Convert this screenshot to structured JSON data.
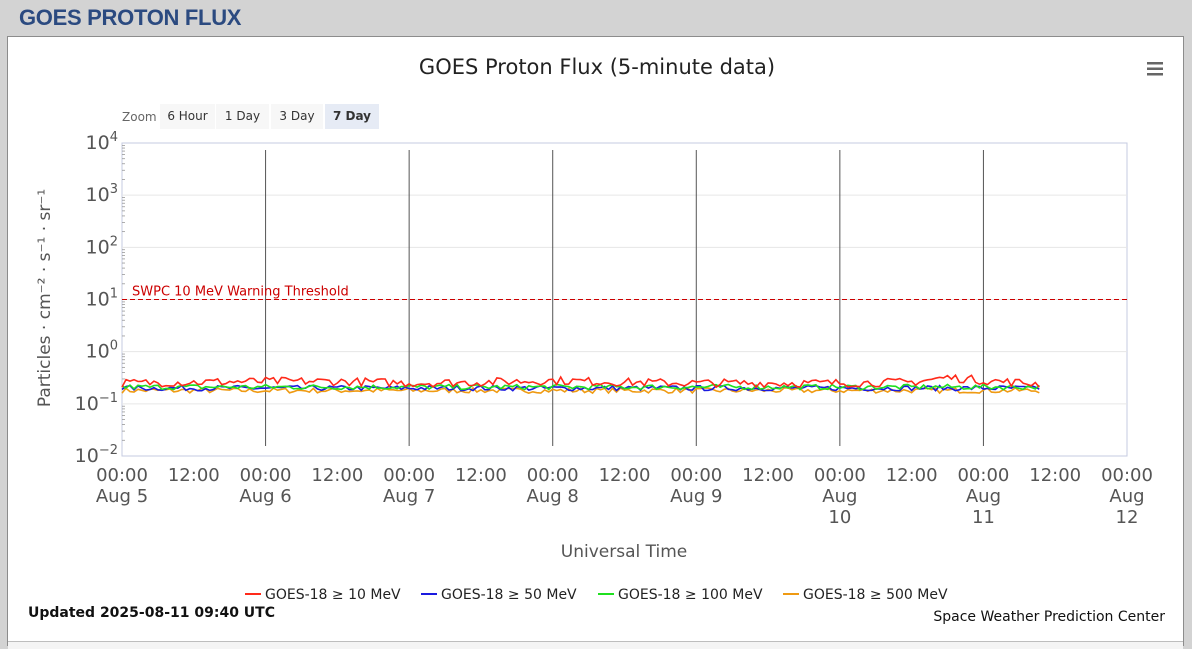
{
  "page": {
    "header_title": "GOES PROTON FLUX"
  },
  "chart": {
    "title": "GOES Proton Flux (5-minute data)",
    "zoom_label": "Zoom",
    "zoom_buttons": [
      {
        "label": "6 Hour",
        "selected": false
      },
      {
        "label": "1 Day",
        "selected": false
      },
      {
        "label": "3 Day",
        "selected": false
      },
      {
        "label": "7 Day",
        "selected": true
      }
    ],
    "updated": "Updated 2025-08-11 09:40 UTC",
    "credit": "Space Weather Prediction Center",
    "threshold_label": "SWPC 10 MeV Warning Threshold",
    "menu_icon": "hamburger-menu-icon"
  },
  "chart_data": {
    "type": "line",
    "title": "GOES Proton Flux (5-minute data)",
    "xlabel": "Universal Time",
    "ylabel": "Particles · cm⁻² · s⁻¹ · sr⁻¹",
    "yscale": "log",
    "ylim": [
      0.01,
      10000
    ],
    "xlim": [
      "2025-08-05 00:00",
      "2025-08-12 00:00"
    ],
    "y_ticks": [
      {
        "base": "10",
        "exp": "4"
      },
      {
        "base": "10",
        "exp": "3"
      },
      {
        "base": "10",
        "exp": "2"
      },
      {
        "base": "10",
        "exp": "1"
      },
      {
        "base": "10",
        "exp": "0"
      },
      {
        "base": "10",
        "exp": "−1"
      },
      {
        "base": "10",
        "exp": "−2"
      }
    ],
    "x_ticks": [
      {
        "lines": [
          "00:00",
          "Aug 5"
        ]
      },
      {
        "lines": [
          "12:00"
        ]
      },
      {
        "lines": [
          "00:00",
          "Aug 6"
        ]
      },
      {
        "lines": [
          "12:00"
        ]
      },
      {
        "lines": [
          "00:00",
          "Aug 7"
        ]
      },
      {
        "lines": [
          "12:00"
        ]
      },
      {
        "lines": [
          "00:00",
          "Aug 8"
        ]
      },
      {
        "lines": [
          "12:00"
        ]
      },
      {
        "lines": [
          "00:00",
          "Aug 9"
        ]
      },
      {
        "lines": [
          "12:00"
        ]
      },
      {
        "lines": [
          "00:00",
          "Aug",
          "10"
        ]
      },
      {
        "lines": [
          "12:00"
        ]
      },
      {
        "lines": [
          "00:00",
          "Aug",
          "11"
        ]
      },
      {
        "lines": [
          "12:00"
        ]
      },
      {
        "lines": [
          "00:00",
          "Aug",
          "12"
        ]
      }
    ],
    "threshold": {
      "value": 10,
      "color": "#cc0000"
    },
    "grid": true,
    "legend_position": "bottom",
    "series": [
      {
        "name": "GOES-18 ≥ 10 MeV",
        "color": "#ff2a1a",
        "x": [
          "2025-08-05 00:00",
          "2025-08-05 12:00",
          "2025-08-06 00:00",
          "2025-08-06 12:00",
          "2025-08-07 00:00",
          "2025-08-07 12:00",
          "2025-08-08 00:00",
          "2025-08-08 12:00",
          "2025-08-09 00:00",
          "2025-08-09 12:00",
          "2025-08-10 00:00",
          "2025-08-10 12:00",
          "2025-08-10 18:00",
          "2025-08-11 00:00",
          "2025-08-11 09:40"
        ],
        "y": [
          0.25,
          0.26,
          0.27,
          0.27,
          0.25,
          0.26,
          0.28,
          0.26,
          0.25,
          0.25,
          0.25,
          0.26,
          0.32,
          0.28,
          0.24
        ]
      },
      {
        "name": "GOES-18 ≥ 50 MeV",
        "color": "#1a1adf",
        "x": [
          "2025-08-05 00:00",
          "2025-08-06 00:00",
          "2025-08-07 00:00",
          "2025-08-08 00:00",
          "2025-08-09 00:00",
          "2025-08-10 00:00",
          "2025-08-11 00:00",
          "2025-08-11 09:40"
        ],
        "y": [
          0.2,
          0.2,
          0.2,
          0.2,
          0.2,
          0.2,
          0.2,
          0.2
        ]
      },
      {
        "name": "GOES-18 ≥ 100 MeV",
        "color": "#1fe01f",
        "x": [
          "2025-08-05 00:00",
          "2025-08-06 00:00",
          "2025-08-07 00:00",
          "2025-08-08 00:00",
          "2025-08-09 00:00",
          "2025-08-10 00:00",
          "2025-08-11 00:00",
          "2025-08-11 09:40"
        ],
        "y": [
          0.21,
          0.21,
          0.21,
          0.21,
          0.21,
          0.21,
          0.21,
          0.21
        ]
      },
      {
        "name": "GOES-18 ≥ 500 MeV",
        "color": "#ef9a12",
        "x": [
          "2025-08-05 00:00",
          "2025-08-06 00:00",
          "2025-08-07 00:00",
          "2025-08-08 00:00",
          "2025-08-09 00:00",
          "2025-08-10 00:00",
          "2025-08-11 00:00",
          "2025-08-11 09:40"
        ],
        "y": [
          0.18,
          0.18,
          0.18,
          0.18,
          0.18,
          0.18,
          0.18,
          0.18
        ]
      }
    ]
  }
}
